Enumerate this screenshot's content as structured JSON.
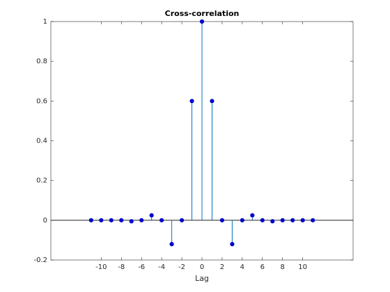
{
  "chart_data": {
    "type": "stem",
    "title": "Cross-correlation",
    "x_label": "Lag",
    "x": [
      -11,
      -10,
      -9,
      -8,
      -7,
      -6,
      -5,
      -4,
      -3,
      -2,
      -1,
      0,
      1,
      2,
      3,
      4,
      5,
      6,
      7,
      8,
      9,
      10,
      11
    ],
    "values": [
      0,
      0,
      0,
      0,
      -0.005,
      0,
      0.025,
      0,
      -0.12,
      0,
      0.6,
      1,
      0.6,
      0,
      -0.12,
      0,
      0.025,
      0,
      -0.005,
      0,
      0,
      0,
      0
    ],
    "color": "#0072bd",
    "marker_color": "#0000cd",
    "xlim": [
      -15,
      15
    ],
    "xticks": [
      -10,
      -8,
      -6,
      -4,
      -2,
      0,
      2,
      4,
      6,
      8,
      10
    ],
    "ylim": [
      -0.2,
      1
    ],
    "yticks": [
      -0.2,
      0,
      0.2,
      0.4,
      0.6,
      0.8,
      1
    ]
  }
}
